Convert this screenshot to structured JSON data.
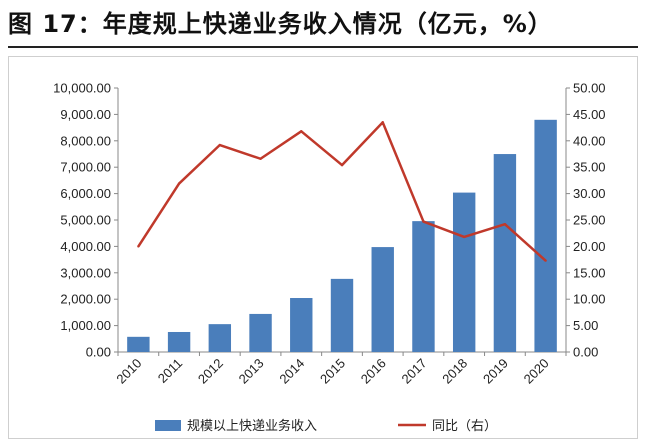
{
  "title": "图 17：年度规上快递业务收入情况（亿元，%）",
  "chart_data": {
    "type": "bar",
    "categories": [
      "2010",
      "2011",
      "2012",
      "2013",
      "2014",
      "2015",
      "2016",
      "2017",
      "2018",
      "2019",
      "2020"
    ],
    "series": [
      {
        "name": "规模以上快递业务收入",
        "type": "bar",
        "axis": "left",
        "color": "#4a7ebb",
        "values": [
          575,
          758,
          1055,
          1442,
          2045,
          2770,
          3974,
          4957,
          6038,
          7498,
          8795
        ]
      },
      {
        "name": "同比（右）",
        "type": "line",
        "axis": "right",
        "color": "#c0392b",
        "values": [
          20.0,
          31.9,
          39.2,
          36.6,
          41.8,
          35.4,
          43.5,
          24.7,
          21.8,
          24.2,
          17.3
        ]
      }
    ],
    "y_left": {
      "min": 0,
      "max": 10000,
      "step": 1000,
      "tick_labels": [
        "0.00",
        "1,000.00",
        "2,000.00",
        "3,000.00",
        "4,000.00",
        "5,000.00",
        "6,000.00",
        "7,000.00",
        "8,000.00",
        "9,000.00",
        "10,000.00"
      ]
    },
    "y_right": {
      "min": 0,
      "max": 50,
      "step": 5,
      "tick_labels": [
        "0.00",
        "5.00",
        "10.00",
        "15.00",
        "20.00",
        "25.00",
        "30.00",
        "35.00",
        "40.00",
        "45.00",
        "50.00"
      ]
    },
    "grid": false,
    "legend_position": "bottom"
  }
}
